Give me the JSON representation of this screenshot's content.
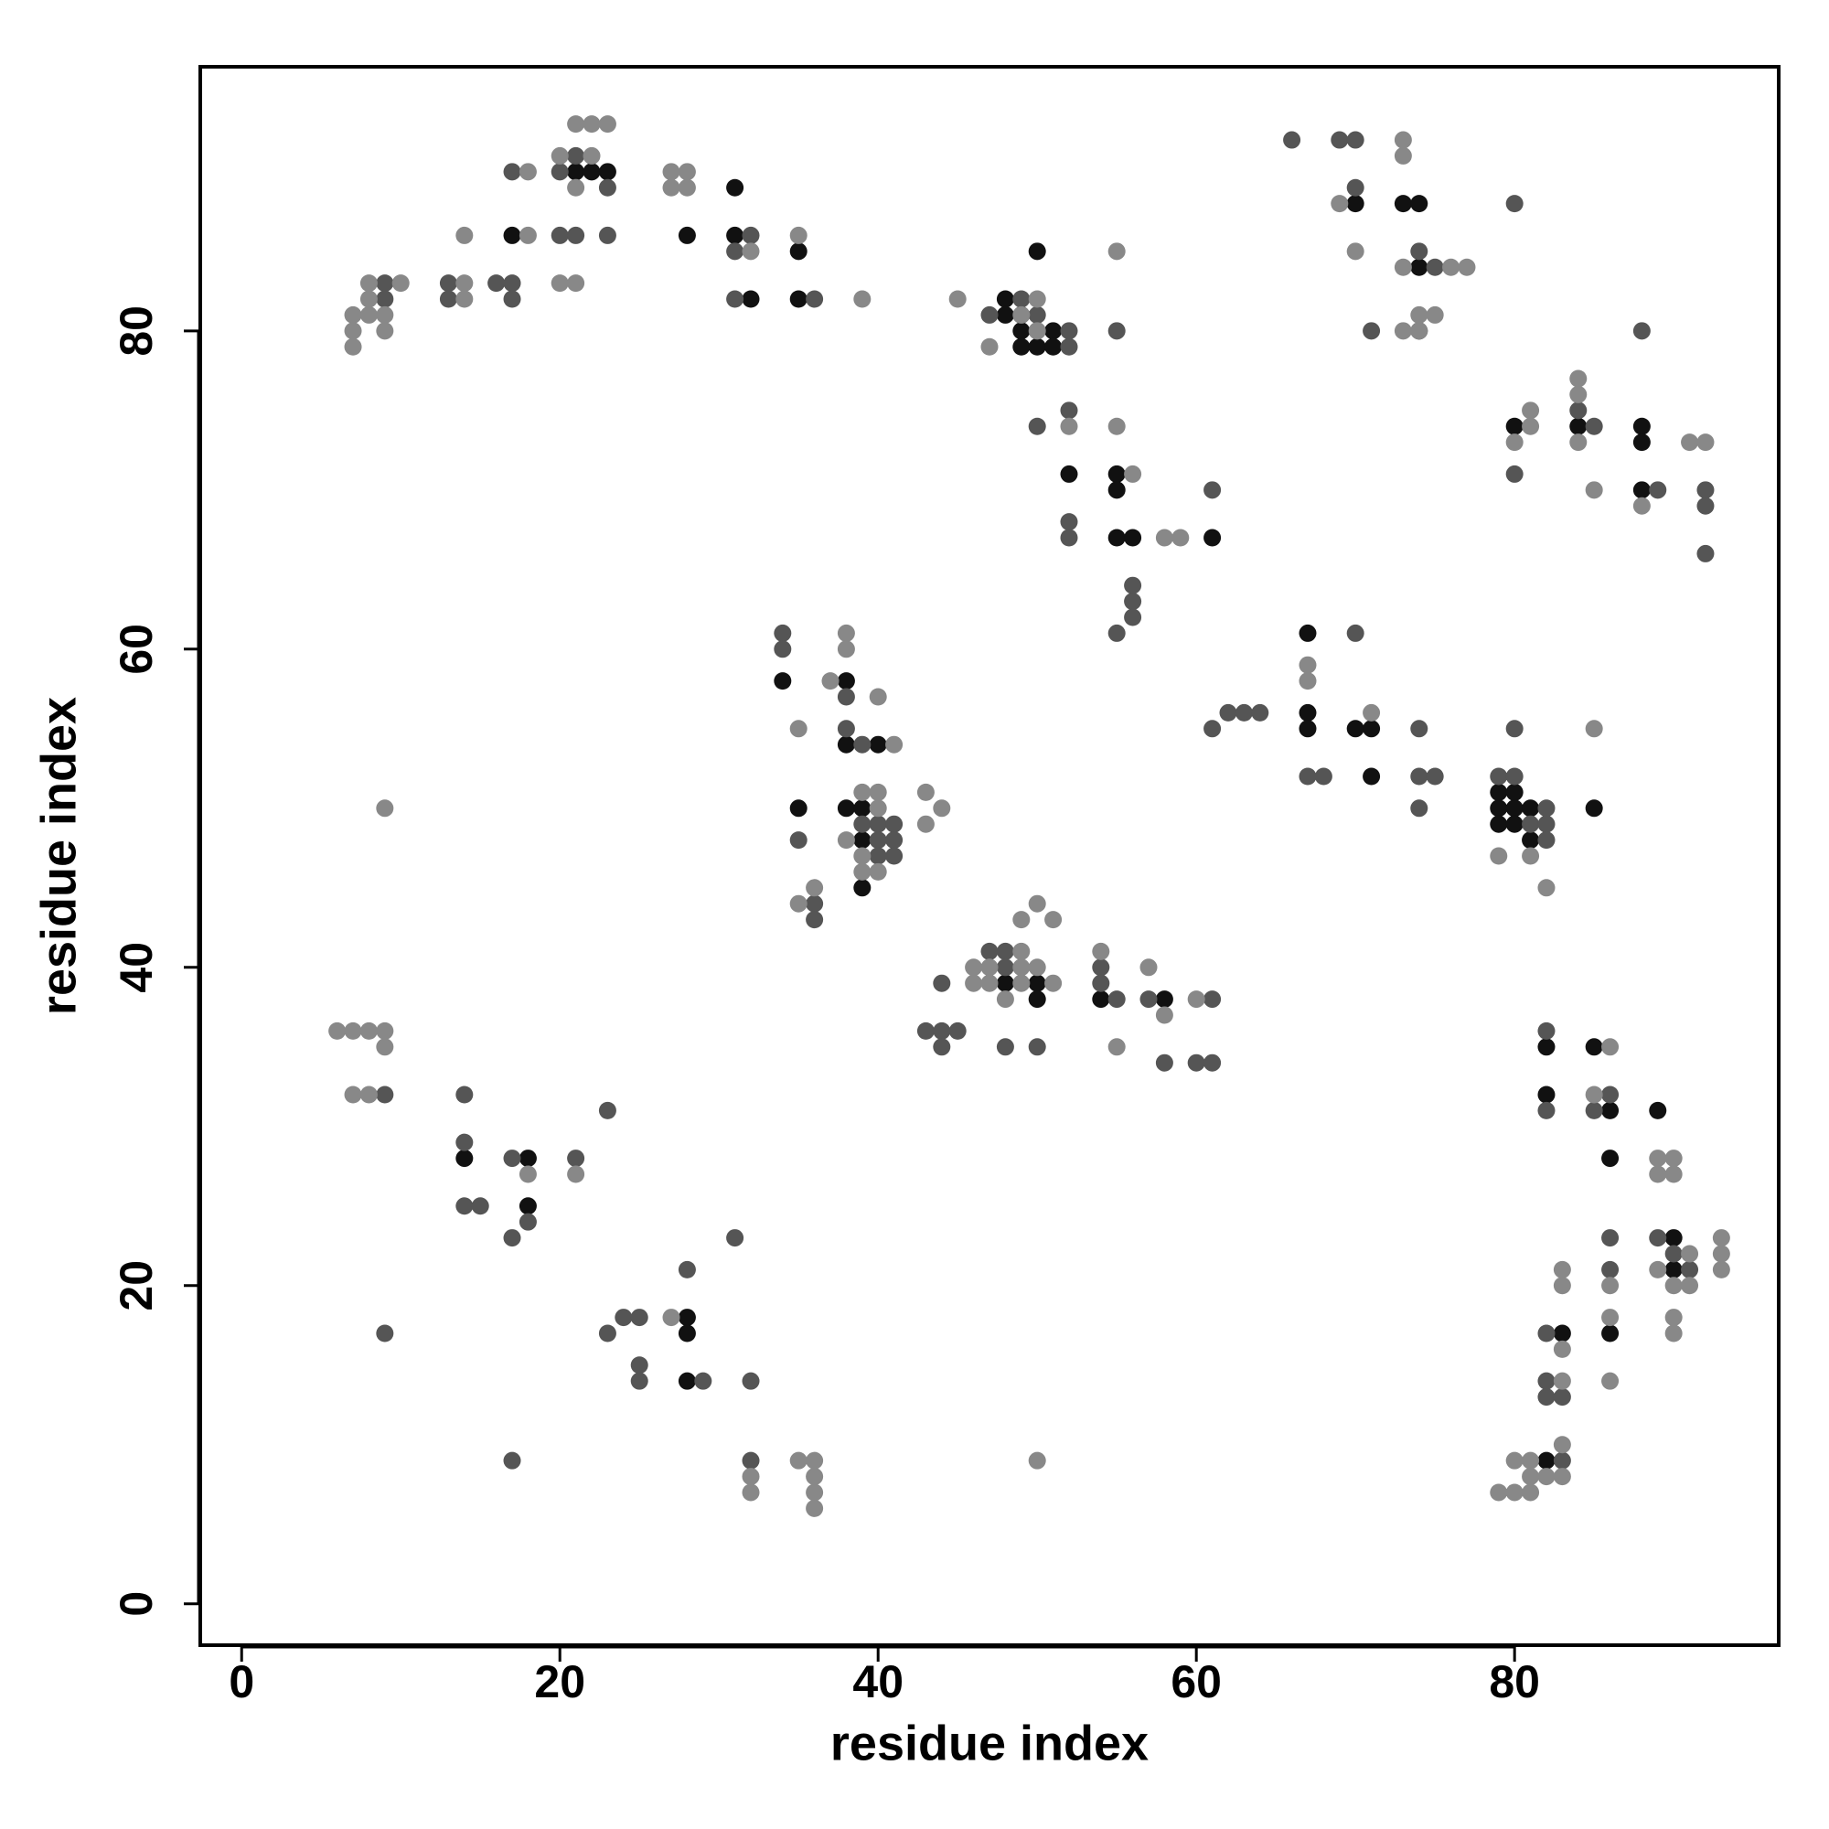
{
  "chart_data": {
    "type": "scatter",
    "x_label": "residue index",
    "y_label": "residue index",
    "xlim": [
      -2.6,
      96.6
    ],
    "ylim": [
      -2.6,
      96.6
    ],
    "xticks": [
      0,
      20,
      40,
      60,
      80
    ],
    "yticks": [
      0,
      20,
      40,
      60,
      80
    ],
    "series": [
      {
        "color": "#111111",
        "x": [
          17,
          21,
          22,
          23,
          28,
          31,
          31,
          32,
          35,
          35,
          48,
          48,
          49,
          49,
          49,
          50,
          50,
          50,
          51,
          51,
          52,
          55,
          55,
          55,
          56,
          61,
          70,
          73,
          74,
          74,
          74,
          80,
          84,
          88,
          88,
          88,
          34,
          35,
          38,
          38,
          38,
          39,
          39,
          39,
          40,
          67,
          67,
          67,
          70,
          71,
          71,
          79,
          79,
          79,
          80,
          80,
          80,
          81,
          81,
          85,
          48,
          50,
          50,
          54,
          58,
          14,
          18,
          18,
          28,
          28,
          28,
          82,
          82,
          82,
          83,
          85,
          86,
          86,
          86,
          89,
          90,
          90
        ],
        "y": [
          86,
          90,
          90,
          90,
          86,
          89,
          86,
          82,
          85,
          82,
          82,
          81,
          81,
          80,
          79,
          85,
          80,
          79,
          80,
          79,
          71,
          71,
          70,
          67,
          67,
          67,
          88,
          88,
          88,
          84,
          80,
          74,
          74,
          74,
          73,
          70,
          58,
          50,
          58,
          54,
          50,
          50,
          48,
          45,
          54,
          61,
          56,
          55,
          55,
          55,
          52,
          51,
          50,
          49,
          51,
          50,
          49,
          50,
          48,
          50,
          39,
          39,
          38,
          38,
          38,
          28,
          28,
          25,
          18,
          17,
          14,
          35,
          32,
          9,
          17,
          35,
          31,
          28,
          17,
          31,
          23,
          21
        ]
      },
      {
        "color": "#555555",
        "x": [
          9,
          9,
          13,
          13,
          16,
          17,
          17,
          17,
          20,
          20,
          21,
          21,
          23,
          23,
          31,
          31,
          32,
          36,
          47,
          49,
          50,
          52,
          52,
          55,
          52,
          50,
          52,
          52,
          55,
          56,
          56,
          56,
          61,
          66,
          69,
          70,
          70,
          71,
          74,
          75,
          80,
          80,
          84,
          85,
          88,
          89,
          92,
          92,
          92,
          34,
          34,
          35,
          36,
          36,
          38,
          38,
          39,
          39,
          40,
          40,
          40,
          41,
          41,
          41,
          61,
          62,
          63,
          64,
          67,
          68,
          70,
          74,
          74,
          74,
          75,
          79,
          80,
          80,
          81,
          82,
          82,
          82,
          43,
          44,
          44,
          45,
          44,
          47,
          48,
          48,
          48,
          50,
          54,
          54,
          55,
          57,
          58,
          60,
          61,
          61,
          9,
          9,
          14,
          14,
          14,
          15,
          17,
          17,
          17,
          18,
          21,
          23,
          23,
          24,
          25,
          25,
          25,
          28,
          29,
          31,
          32,
          32,
          82,
          82,
          82,
          82,
          82,
          83,
          83,
          85,
          86,
          86,
          86,
          89,
          90,
          91
        ],
        "y": [
          83,
          82,
          83,
          82,
          83,
          83,
          82,
          90,
          90,
          86,
          91,
          86,
          89,
          86,
          85,
          82,
          86,
          82,
          81,
          82,
          81,
          80,
          79,
          80,
          75,
          74,
          68,
          67,
          61,
          64,
          63,
          62,
          70,
          92,
          92,
          92,
          89,
          80,
          85,
          84,
          88,
          71,
          75,
          74,
          80,
          70,
          70,
          69,
          66,
          61,
          60,
          48,
          44,
          43,
          57,
          55,
          54,
          49,
          49,
          48,
          47,
          49,
          48,
          47,
          55,
          56,
          56,
          56,
          52,
          52,
          61,
          55,
          52,
          50,
          52,
          52,
          55,
          52,
          49,
          50,
          49,
          48,
          36,
          36,
          35,
          36,
          39,
          41,
          41,
          40,
          35,
          35,
          40,
          39,
          38,
          38,
          34,
          34,
          38,
          34,
          32,
          17,
          32,
          29,
          25,
          25,
          28,
          23,
          9,
          24,
          28,
          31,
          17,
          18,
          18,
          15,
          14,
          21,
          14,
          23,
          14,
          9,
          36,
          31,
          17,
          14,
          13,
          13,
          9,
          31,
          32,
          23,
          21,
          23,
          22,
          21
        ]
      },
      {
        "color": "#888888",
        "x": [
          7,
          7,
          7,
          8,
          8,
          8,
          9,
          9,
          10,
          14,
          14,
          14,
          18,
          18,
          20,
          20,
          21,
          21,
          21,
          22,
          22,
          23,
          27,
          27,
          28,
          28,
          32,
          35,
          39,
          45,
          47,
          49,
          50,
          50,
          55,
          52,
          55,
          56,
          58,
          59,
          69,
          70,
          73,
          73,
          73,
          73,
          74,
          74,
          75,
          76,
          77,
          80,
          81,
          81,
          84,
          84,
          84,
          85,
          88,
          91,
          92,
          35,
          35,
          36,
          37,
          38,
          38,
          38,
          39,
          39,
          39,
          40,
          40,
          40,
          40,
          41,
          43,
          43,
          44,
          67,
          67,
          71,
          79,
          81,
          82,
          85,
          46,
          46,
          47,
          47,
          48,
          49,
          49,
          49,
          49,
          50,
          50,
          51,
          51,
          54,
          55,
          57,
          58,
          60,
          6,
          7,
          7,
          8,
          8,
          9,
          9,
          9,
          18,
          21,
          27,
          32,
          32,
          35,
          36,
          36,
          36,
          36,
          50,
          79,
          80,
          80,
          81,
          81,
          81,
          82,
          83,
          83,
          83,
          83,
          83,
          83,
          85,
          86,
          86,
          86,
          86,
          89,
          89,
          89,
          90,
          90,
          90,
          90,
          90,
          91,
          91,
          93,
          93,
          93
        ],
        "y": [
          81,
          80,
          79,
          83,
          82,
          81,
          81,
          80,
          83,
          83,
          82,
          86,
          90,
          86,
          91,
          83,
          93,
          89,
          83,
          93,
          91,
          93,
          90,
          89,
          90,
          89,
          85,
          86,
          82,
          82,
          79,
          81,
          82,
          80,
          85,
          74,
          74,
          71,
          67,
          67,
          88,
          85,
          92,
          91,
          84,
          80,
          81,
          80,
          81,
          84,
          84,
          73,
          75,
          74,
          77,
          76,
          73,
          70,
          69,
          73,
          73,
          55,
          44,
          45,
          58,
          61,
          60,
          48,
          51,
          47,
          46,
          57,
          51,
          50,
          46,
          54,
          51,
          49,
          50,
          59,
          58,
          56,
          47,
          47,
          45,
          55,
          40,
          39,
          40,
          39,
          38,
          43,
          41,
          40,
          39,
          44,
          40,
          43,
          39,
          41,
          35,
          40,
          37,
          38,
          36,
          36,
          32,
          36,
          32,
          36,
          35,
          50,
          27,
          27,
          18,
          8,
          7,
          9,
          9,
          8,
          7,
          6,
          9,
          7,
          9,
          7,
          9,
          8,
          7,
          8,
          21,
          20,
          16,
          14,
          10,
          8,
          32,
          35,
          20,
          18,
          14,
          28,
          27,
          21,
          28,
          27,
          20,
          18,
          17,
          22,
          20,
          23,
          22,
          21
        ]
      }
    ]
  }
}
